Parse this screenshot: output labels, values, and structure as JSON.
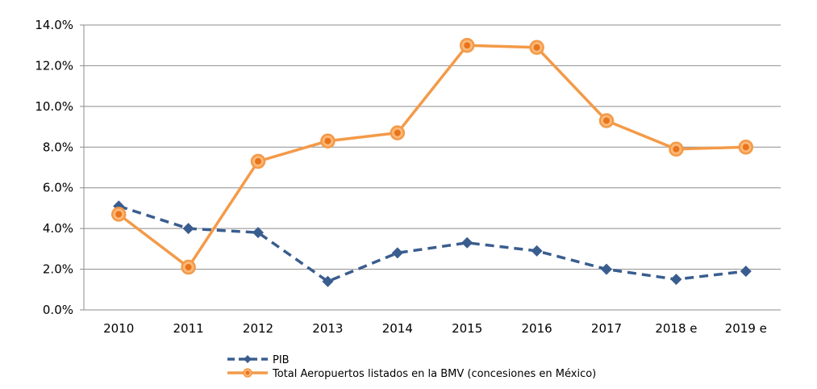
{
  "chart_data": {
    "type": "line",
    "title": "",
    "xlabel": "",
    "ylabel": "",
    "categories": [
      "2010",
      "2011",
      "2012",
      "2013",
      "2014",
      "2015",
      "2016",
      "2017",
      "2018 e",
      "2019 e"
    ],
    "ylim": [
      0,
      14
    ],
    "y_ticks": [
      "0.0%",
      "2.0%",
      "4.0%",
      "6.0%",
      "8.0%",
      "10.0%",
      "12.0%",
      "14.0%"
    ],
    "y_tick_values": [
      0,
      2,
      4,
      6,
      8,
      10,
      12,
      14
    ],
    "grid": true,
    "legend_position": "bottom",
    "series": [
      {
        "name": "PIB",
        "color": "#3a5d8f",
        "line_style": "dashed",
        "marker": "diamond",
        "values": [
          5.1,
          4.0,
          3.8,
          1.4,
          2.8,
          3.3,
          2.9,
          2.0,
          1.5,
          1.9
        ]
      },
      {
        "name": "Total Aeropuertos listados en la BMV (concesiones en México)",
        "color": "#f39a48",
        "line_style": "solid",
        "marker": "circle",
        "values": [
          4.7,
          2.1,
          7.3,
          8.3,
          8.7,
          13.0,
          12.9,
          9.3,
          7.9,
          8.0
        ]
      }
    ]
  }
}
